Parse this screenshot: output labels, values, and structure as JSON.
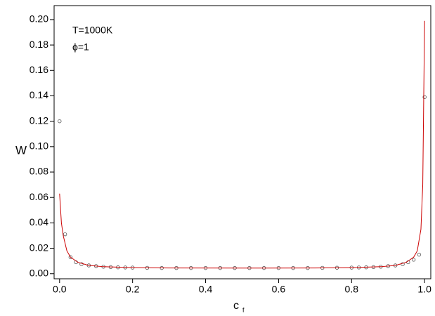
{
  "chart_data": {
    "type": "scatter",
    "annotations": [
      "T=1000K",
      "ϕ=1"
    ],
    "y_label": "W",
    "x_label": "c",
    "x_label_subscript": "f",
    "xlim": [
      -0.015,
      1.017
    ],
    "ylim": [
      -0.004,
      0.211
    ],
    "xticks": [
      {
        "value": 0,
        "label": "0.0"
      },
      {
        "value": 0.2,
        "label": "0.2"
      },
      {
        "value": 0.4,
        "label": "0.4"
      },
      {
        "value": 0.6,
        "label": "0.6"
      },
      {
        "value": 0.8,
        "label": "0.8"
      },
      {
        "value": 1,
        "label": "1.0"
      }
    ],
    "yticks": [
      {
        "value": 0,
        "label": "0.00"
      },
      {
        "value": 0.02,
        "label": "0.02"
      },
      {
        "value": 0.04,
        "label": "0.04"
      },
      {
        "value": 0.06,
        "label": "0.06"
      },
      {
        "value": 0.08,
        "label": "0.08"
      },
      {
        "value": 0.1,
        "label": "0.10"
      },
      {
        "value": 0.12,
        "label": "0.12"
      },
      {
        "value": 0.14,
        "label": "0.14"
      },
      {
        "value": 0.16,
        "label": "0.16"
      },
      {
        "value": 0.18,
        "label": "0.18"
      },
      {
        "value": 0.2,
        "label": "0.20"
      }
    ],
    "series": [
      {
        "kind": "markers",
        "color": "#555555",
        "x": [
          0,
          0.015,
          0.03,
          0.045,
          0.06,
          0.08,
          0.1,
          0.12,
          0.14,
          0.16,
          0.18,
          0.2,
          0.24,
          0.28,
          0.32,
          0.36,
          0.4,
          0.44,
          0.48,
          0.52,
          0.56,
          0.6,
          0.64,
          0.68,
          0.72,
          0.76,
          0.8,
          0.82,
          0.84,
          0.86,
          0.88,
          0.9,
          0.92,
          0.94,
          0.955,
          0.97,
          0.985,
          1.0
        ],
        "values": [
          0.12,
          0.031,
          0.013,
          0.009,
          0.0075,
          0.0065,
          0.006,
          0.0055,
          0.0052,
          0.005,
          0.0049,
          0.0048,
          0.0046,
          0.0045,
          0.0045,
          0.0045,
          0.0045,
          0.0045,
          0.0045,
          0.0045,
          0.0045,
          0.0045,
          0.0045,
          0.0045,
          0.0046,
          0.0047,
          0.0048,
          0.0049,
          0.005,
          0.0052,
          0.0055,
          0.006,
          0.0065,
          0.0075,
          0.009,
          0.011,
          0.015,
          0.139
        ]
      },
      {
        "kind": "line",
        "color": "#cc0000",
        "x": [
          0,
          0.005,
          0.01,
          0.02,
          0.03,
          0.05,
          0.08,
          0.12,
          0.2,
          0.3,
          0.5,
          0.7,
          0.8,
          0.88,
          0.92,
          0.95,
          0.97,
          0.98,
          0.99,
          0.995,
          1.0
        ],
        "values": [
          0.063,
          0.04,
          0.03,
          0.018,
          0.013,
          0.009,
          0.0065,
          0.0055,
          0.0048,
          0.0045,
          0.0044,
          0.0045,
          0.0048,
          0.0055,
          0.0065,
          0.009,
          0.013,
          0.018,
          0.035,
          0.07,
          0.199
        ]
      }
    ]
  }
}
